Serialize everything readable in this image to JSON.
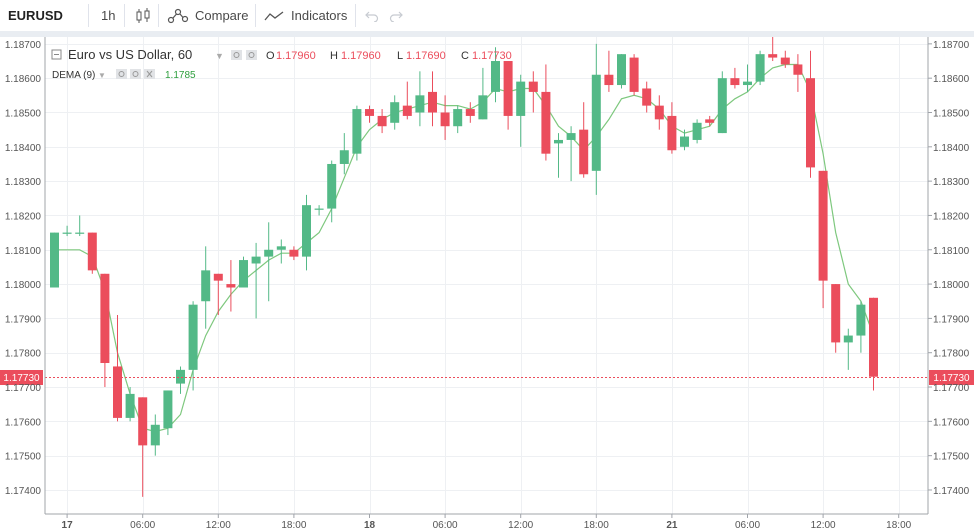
{
  "toolbar": {
    "symbol": "EURUSD",
    "interval": "1h",
    "compare_label": "Compare",
    "indicators_label": "Indicators"
  },
  "legend": {
    "title": "Euro vs US Dollar, 60",
    "o_label": "O",
    "o_value": "1.17960",
    "h_label": "H",
    "h_value": "1.17960",
    "l_label": "L",
    "l_value": "1.17690",
    "c_label": "C",
    "c_value": "1.17730",
    "dema_label": "DEMA (9)",
    "dema_value": "1.1785"
  },
  "colors": {
    "up": "#53b987",
    "down": "#eb4d5c",
    "dema": "#7ec87e",
    "price_tag": "#eb4d5c"
  },
  "chart_data": {
    "type": "candlestick",
    "ylim": [
      1.1733,
      1.1872
    ],
    "grid": true,
    "y_ticks": [
      1.174,
      1.175,
      1.176,
      1.177,
      1.178,
      1.179,
      1.18,
      1.181,
      1.182,
      1.183,
      1.184,
      1.185,
      1.186,
      1.187
    ],
    "y_tick_labels": [
      "1.17400",
      "1.17500",
      "1.17600",
      "1.17700",
      "1.17800",
      "1.17900",
      "1.18000",
      "1.18100",
      "1.18200",
      "1.18300",
      "1.18400",
      "1.18500",
      "1.18600",
      "1.18700"
    ],
    "x_labels": [
      {
        "bar": 1,
        "label": "17",
        "bold": true
      },
      {
        "bar": 7,
        "label": "06:00",
        "bold": false
      },
      {
        "bar": 13,
        "label": "12:00",
        "bold": false
      },
      {
        "bar": 19,
        "label": "18:00",
        "bold": false
      },
      {
        "bar": 25,
        "label": "18",
        "bold": true
      },
      {
        "bar": 31,
        "label": "06:00",
        "bold": false
      },
      {
        "bar": 37,
        "label": "12:00",
        "bold": false
      },
      {
        "bar": 43,
        "label": "18:00",
        "bold": false
      },
      {
        "bar": 49,
        "label": "21",
        "bold": true
      },
      {
        "bar": 55,
        "label": "06:00",
        "bold": false
      },
      {
        "bar": 61,
        "label": "12:00",
        "bold": false
      },
      {
        "bar": 67,
        "label": "18:00",
        "bold": false
      }
    ],
    "last_price": 1.1773,
    "last_price_label": "1.17730",
    "candles": [
      {
        "o": 1.1799,
        "h": 1.1815,
        "l": 1.1799,
        "c": 1.1815
      },
      {
        "o": 1.1815,
        "h": 1.1817,
        "l": 1.1814,
        "c": 1.1815
      },
      {
        "o": 1.1815,
        "h": 1.182,
        "l": 1.1814,
        "c": 1.1815
      },
      {
        "o": 1.1815,
        "h": 1.1815,
        "l": 1.1803,
        "c": 1.1804
      },
      {
        "o": 1.1803,
        "h": 1.1803,
        "l": 1.177,
        "c": 1.1777
      },
      {
        "o": 1.1776,
        "h": 1.1791,
        "l": 1.176,
        "c": 1.1761
      },
      {
        "o": 1.1761,
        "h": 1.177,
        "l": 1.176,
        "c": 1.1768
      },
      {
        "o": 1.1767,
        "h": 1.1767,
        "l": 1.1738,
        "c": 1.1753
      },
      {
        "o": 1.1753,
        "h": 1.1762,
        "l": 1.175,
        "c": 1.1759
      },
      {
        "o": 1.1758,
        "h": 1.1769,
        "l": 1.1756,
        "c": 1.1769
      },
      {
        "o": 1.1771,
        "h": 1.1776,
        "l": 1.1768,
        "c": 1.1775
      },
      {
        "o": 1.1775,
        "h": 1.1795,
        "l": 1.1769,
        "c": 1.1794
      },
      {
        "o": 1.1795,
        "h": 1.1811,
        "l": 1.1787,
        "c": 1.1804
      },
      {
        "o": 1.1803,
        "h": 1.1803,
        "l": 1.1791,
        "c": 1.1801
      },
      {
        "o": 1.18,
        "h": 1.1807,
        "l": 1.1792,
        "c": 1.1799
      },
      {
        "o": 1.1799,
        "h": 1.1808,
        "l": 1.1799,
        "c": 1.1807
      },
      {
        "o": 1.1806,
        "h": 1.1812,
        "l": 1.179,
        "c": 1.1808
      },
      {
        "o": 1.1808,
        "h": 1.1818,
        "l": 1.1795,
        "c": 1.181
      },
      {
        "o": 1.181,
        "h": 1.1813,
        "l": 1.1806,
        "c": 1.1811
      },
      {
        "o": 1.181,
        "h": 1.1811,
        "l": 1.1807,
        "c": 1.1808
      },
      {
        "o": 1.1808,
        "h": 1.1826,
        "l": 1.1804,
        "c": 1.1823
      },
      {
        "o": 1.1822,
        "h": 1.1823,
        "l": 1.182,
        "c": 1.1822
      },
      {
        "o": 1.1822,
        "h": 1.1836,
        "l": 1.1818,
        "c": 1.1835
      },
      {
        "o": 1.1835,
        "h": 1.1844,
        "l": 1.1832,
        "c": 1.1839
      },
      {
        "o": 1.1838,
        "h": 1.1852,
        "l": 1.1836,
        "c": 1.1851
      },
      {
        "o": 1.1851,
        "h": 1.1852,
        "l": 1.1847,
        "c": 1.1849
      },
      {
        "o": 1.1849,
        "h": 1.1851,
        "l": 1.1844,
        "c": 1.1846
      },
      {
        "o": 1.1847,
        "h": 1.1855,
        "l": 1.1845,
        "c": 1.1853
      },
      {
        "o": 1.1852,
        "h": 1.1859,
        "l": 1.1848,
        "c": 1.1849
      },
      {
        "o": 1.185,
        "h": 1.1862,
        "l": 1.1846,
        "c": 1.1855
      },
      {
        "o": 1.1856,
        "h": 1.1862,
        "l": 1.1846,
        "c": 1.185
      },
      {
        "o": 1.185,
        "h": 1.1855,
        "l": 1.1842,
        "c": 1.1846
      },
      {
        "o": 1.1846,
        "h": 1.1852,
        "l": 1.1844,
        "c": 1.1851
      },
      {
        "o": 1.1851,
        "h": 1.1853,
        "l": 1.1847,
        "c": 1.1849
      },
      {
        "o": 1.1848,
        "h": 1.1863,
        "l": 1.1848,
        "c": 1.1855
      },
      {
        "o": 1.1856,
        "h": 1.1869,
        "l": 1.1853,
        "c": 1.1865
      },
      {
        "o": 1.1865,
        "h": 1.1865,
        "l": 1.1845,
        "c": 1.1849
      },
      {
        "o": 1.1849,
        "h": 1.1861,
        "l": 1.184,
        "c": 1.1859
      },
      {
        "o": 1.1859,
        "h": 1.1862,
        "l": 1.185,
        "c": 1.1856
      },
      {
        "o": 1.1856,
        "h": 1.1864,
        "l": 1.1836,
        "c": 1.1838
      },
      {
        "o": 1.1841,
        "h": 1.1844,
        "l": 1.1831,
        "c": 1.1842
      },
      {
        "o": 1.1842,
        "h": 1.1846,
        "l": 1.183,
        "c": 1.1844
      },
      {
        "o": 1.1845,
        "h": 1.1853,
        "l": 1.1831,
        "c": 1.1832
      },
      {
        "o": 1.1833,
        "h": 1.187,
        "l": 1.1826,
        "c": 1.1861
      },
      {
        "o": 1.1861,
        "h": 1.1868,
        "l": 1.1856,
        "c": 1.1858
      },
      {
        "o": 1.1858,
        "h": 1.1867,
        "l": 1.1857,
        "c": 1.1867
      },
      {
        "o": 1.1866,
        "h": 1.1867,
        "l": 1.1855,
        "c": 1.1856
      },
      {
        "o": 1.1857,
        "h": 1.1859,
        "l": 1.185,
        "c": 1.1852
      },
      {
        "o": 1.1852,
        "h": 1.1855,
        "l": 1.1845,
        "c": 1.1848
      },
      {
        "o": 1.1849,
        "h": 1.1853,
        "l": 1.1838,
        "c": 1.1839
      },
      {
        "o": 1.184,
        "h": 1.1845,
        "l": 1.1839,
        "c": 1.1843
      },
      {
        "o": 1.1842,
        "h": 1.1848,
        "l": 1.1841,
        "c": 1.1847
      },
      {
        "o": 1.1848,
        "h": 1.1849,
        "l": 1.1846,
        "c": 1.1847
      },
      {
        "o": 1.1844,
        "h": 1.1862,
        "l": 1.1844,
        "c": 1.186
      },
      {
        "o": 1.186,
        "h": 1.1863,
        "l": 1.1857,
        "c": 1.1858
      },
      {
        "o": 1.1858,
        "h": 1.1864,
        "l": 1.1856,
        "c": 1.1859
      },
      {
        "o": 1.1859,
        "h": 1.1868,
        "l": 1.1858,
        "c": 1.1867
      },
      {
        "o": 1.1867,
        "h": 1.1872,
        "l": 1.1865,
        "c": 1.1866
      },
      {
        "o": 1.1866,
        "h": 1.1868,
        "l": 1.1863,
        "c": 1.1864
      },
      {
        "o": 1.1864,
        "h": 1.1867,
        "l": 1.1856,
        "c": 1.1861
      },
      {
        "o": 1.186,
        "h": 1.1868,
        "l": 1.1831,
        "c": 1.1834
      },
      {
        "o": 1.1833,
        "h": 1.1833,
        "l": 1.1793,
        "c": 1.1801
      },
      {
        "o": 1.18,
        "h": 1.18,
        "l": 1.178,
        "c": 1.1783
      },
      {
        "o": 1.1783,
        "h": 1.1787,
        "l": 1.1775,
        "c": 1.1785
      },
      {
        "o": 1.1785,
        "h": 1.1795,
        "l": 1.178,
        "c": 1.1794
      },
      {
        "o": 1.1796,
        "h": 1.1796,
        "l": 1.1769,
        "c": 1.1773
      }
    ],
    "dema": [
      1.181,
      1.181,
      1.181,
      1.1808,
      1.1798,
      1.178,
      1.1768,
      1.1758,
      1.1757,
      1.1758,
      1.1762,
      1.1775,
      1.1785,
      1.1792,
      1.1797,
      1.1801,
      1.1804,
      1.1807,
      1.1809,
      1.1809,
      1.1812,
      1.1815,
      1.1822,
      1.1831,
      1.184,
      1.1845,
      1.1848,
      1.185,
      1.1851,
      1.1852,
      1.1853,
      1.1852,
      1.1852,
      1.1851,
      1.1853,
      1.1857,
      1.1856,
      1.1857,
      1.1857,
      1.1852,
      1.1846,
      1.1843,
      1.1839,
      1.1843,
      1.1848,
      1.1854,
      1.1855,
      1.1854,
      1.1851,
      1.1846,
      1.1844,
      1.1845,
      1.1846,
      1.1851,
      1.1854,
      1.1856,
      1.186,
      1.1863,
      1.1864,
      1.1864,
      1.1856,
      1.1838,
      1.1815,
      1.18,
      1.1795,
      1.1785
    ]
  }
}
